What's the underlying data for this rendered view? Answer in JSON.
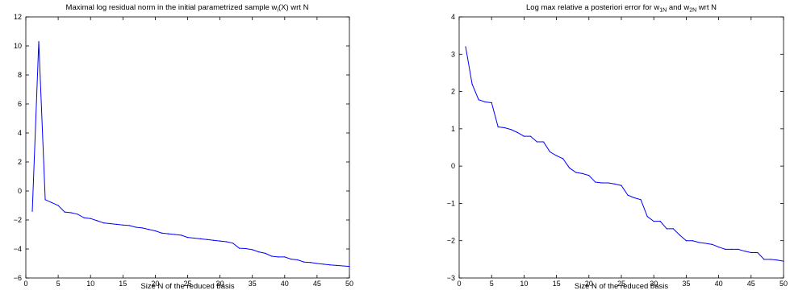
{
  "chart_data": [
    {
      "type": "line",
      "title_parts": [
        "Maximal log residual norm in the initial parametrized sample w",
        "i",
        "(X) wrt N"
      ],
      "xlabel": "Size N of the reduced basis",
      "ylabel": "",
      "xlim": [
        0,
        50
      ],
      "ylim": [
        -6,
        12
      ],
      "xticks": [
        0,
        5,
        10,
        15,
        20,
        25,
        30,
        35,
        40,
        45,
        50
      ],
      "yticks": [
        -6,
        -4,
        -2,
        0,
        2,
        4,
        6,
        8,
        10,
        12
      ],
      "grid": false,
      "color": "#0000ff",
      "series": [
        {
          "x": [
            1,
            2,
            3,
            4,
            5,
            6,
            7,
            8,
            9,
            10,
            11,
            12,
            13,
            14,
            15,
            16,
            17,
            18,
            19,
            20,
            21,
            22,
            23,
            24,
            25,
            26,
            27,
            28,
            29,
            30,
            31,
            32,
            33,
            34,
            35,
            36,
            37,
            38,
            39,
            40,
            41,
            42,
            43,
            44,
            45,
            46,
            47,
            48,
            49,
            50
          ],
          "y": [
            -1.4,
            10.3,
            -0.6,
            -0.8,
            -1.0,
            -1.45,
            -1.5,
            -1.6,
            -1.85,
            -1.9,
            -2.05,
            -2.2,
            -2.25,
            -2.3,
            -2.35,
            -2.38,
            -2.5,
            -2.55,
            -2.65,
            -2.75,
            -2.9,
            -2.95,
            -3.0,
            -3.05,
            -3.2,
            -3.25,
            -3.3,
            -3.35,
            -3.4,
            -3.45,
            -3.5,
            -3.6,
            -3.95,
            -3.97,
            -4.05,
            -4.2,
            -4.3,
            -4.5,
            -4.55,
            -4.55,
            -4.7,
            -4.75,
            -4.9,
            -4.93,
            -5.0,
            -5.05,
            -5.1,
            -5.13,
            -5.17,
            -5.2
          ]
        }
      ]
    },
    {
      "type": "line",
      "title_parts": [
        "Log max relative a posteriori error for w",
        "1N",
        " and w",
        "2N",
        " wrt N"
      ],
      "xlabel": "Size N of the reduced basis",
      "ylabel": "",
      "xlim": [
        0,
        50
      ],
      "ylim": [
        -3,
        4
      ],
      "xticks": [
        0,
        5,
        10,
        15,
        20,
        25,
        30,
        35,
        40,
        45,
        50
      ],
      "yticks": [
        -3,
        -2,
        -1,
        0,
        1,
        2,
        3,
        4
      ],
      "grid": false,
      "color": "#0000ff",
      "series": [
        {
          "x": [
            1,
            2,
            3,
            4,
            5,
            6,
            7,
            8,
            9,
            10,
            11,
            12,
            13,
            14,
            15,
            16,
            17,
            18,
            19,
            20,
            21,
            22,
            23,
            24,
            25,
            26,
            27,
            28,
            29,
            30,
            31,
            32,
            33,
            34,
            35,
            36,
            37,
            38,
            39,
            40,
            41,
            42,
            43,
            44,
            45,
            46,
            47,
            48,
            49,
            50
          ],
          "y": [
            3.2,
            2.2,
            1.78,
            1.72,
            1.7,
            1.05,
            1.03,
            0.98,
            0.9,
            0.8,
            0.8,
            0.65,
            0.65,
            0.38,
            0.28,
            0.2,
            -0.05,
            -0.17,
            -0.2,
            -0.25,
            -0.43,
            -0.45,
            -0.45,
            -0.48,
            -0.52,
            -0.78,
            -0.85,
            -0.9,
            -1.35,
            -1.48,
            -1.48,
            -1.68,
            -1.68,
            -1.85,
            -2.0,
            -2.0,
            -2.05,
            -2.07,
            -2.1,
            -2.17,
            -2.23,
            -2.23,
            -2.23,
            -2.28,
            -2.32,
            -2.32,
            -2.5,
            -2.5,
            -2.52,
            -2.55
          ]
        }
      ]
    }
  ]
}
